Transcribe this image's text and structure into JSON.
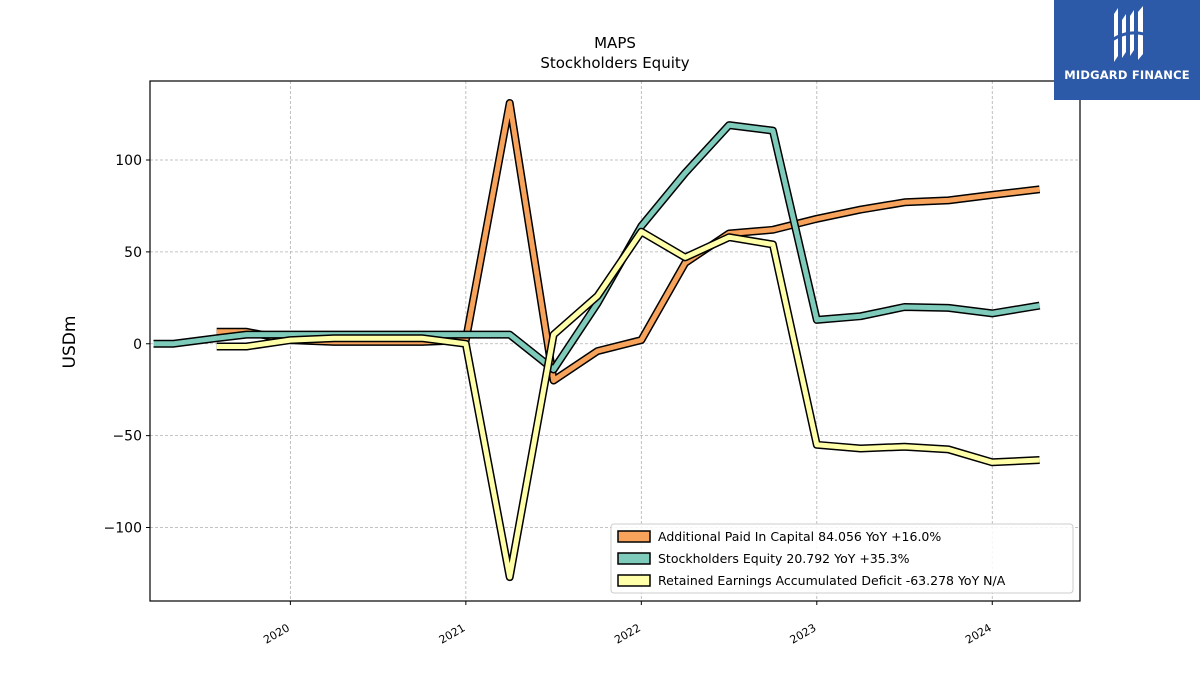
{
  "chart_data": {
    "type": "line",
    "title": "MAPS",
    "subtitle": "Stockholders  Equity",
    "xlabel": "",
    "ylabel": "USDm",
    "xlim": [
      2019.2,
      2024.5
    ],
    "ylim": [
      -140,
      143
    ],
    "grid": true,
    "legend_position": "lower-right",
    "x_ticks": [
      2020,
      2021,
      2022,
      2023,
      2024
    ],
    "x_tick_labels": [
      "2020",
      "2021",
      "2022",
      "2023",
      "2024"
    ],
    "y_ticks": [
      100,
      50,
      0,
      -50,
      -100
    ],
    "y_tick_labels": [
      "100",
      "50",
      "0",
      "−50",
      "−100"
    ],
    "series": [
      {
        "name": "Additional Paid In Capital  84.056 YoY +16.0%",
        "color": "#f7a35c",
        "x": [
          2019.58,
          2019.75,
          2020.0,
          2020.25,
          2020.5,
          2020.75,
          2021.0,
          2021.25,
          2021.5,
          2021.75,
          2022.0,
          2022.25,
          2022.5,
          2022.75,
          2023.0,
          2023.25,
          2023.5,
          2023.75,
          2024.0,
          2024.27
        ],
        "y": [
          6.5,
          6.5,
          2,
          1,
          1,
          1,
          2,
          131,
          -20,
          -4,
          2,
          44,
          60,
          62,
          68,
          73,
          77,
          78,
          81,
          84.056
        ]
      },
      {
        "name": "Stockholders Equity  20.792 YoY +35.3%",
        "color": "#7fcbbb",
        "x": [
          2019.22,
          2019.33,
          2019.58,
          2019.75,
          2020.0,
          2020.25,
          2020.5,
          2020.75,
          2021.0,
          2021.25,
          2021.5,
          2021.75,
          2022.0,
          2022.25,
          2022.5,
          2022.75,
          2023.0,
          2023.25,
          2023.5,
          2023.75,
          2024.0,
          2024.27
        ],
        "y": [
          0,
          0,
          3,
          5,
          5,
          5,
          5,
          5,
          5,
          5,
          -14,
          22,
          64,
          93,
          119,
          116,
          13,
          15,
          20,
          19.5,
          16.5,
          20.792
        ]
      },
      {
        "name": "Retained Earnings Accumulated Deficit  -63.278 YoY N/A",
        "color": "#ffffaa",
        "x": [
          2019.58,
          2019.75,
          2020.0,
          2020.25,
          2020.5,
          2020.75,
          2021.0,
          2021.25,
          2021.5,
          2021.75,
          2022.0,
          2022.25,
          2022.5,
          2022.75,
          2023.0,
          2023.25,
          2023.5,
          2023.75,
          2024.0,
          2024.27
        ],
        "y": [
          -1.5,
          -1.5,
          2,
          3,
          3,
          3,
          0,
          -127,
          5,
          26,
          61,
          47,
          58,
          54,
          -55,
          -57,
          -56,
          -57.5,
          -64.5,
          -63.278
        ]
      }
    ]
  },
  "logo": {
    "text": "MIDGARD FINANCE"
  }
}
